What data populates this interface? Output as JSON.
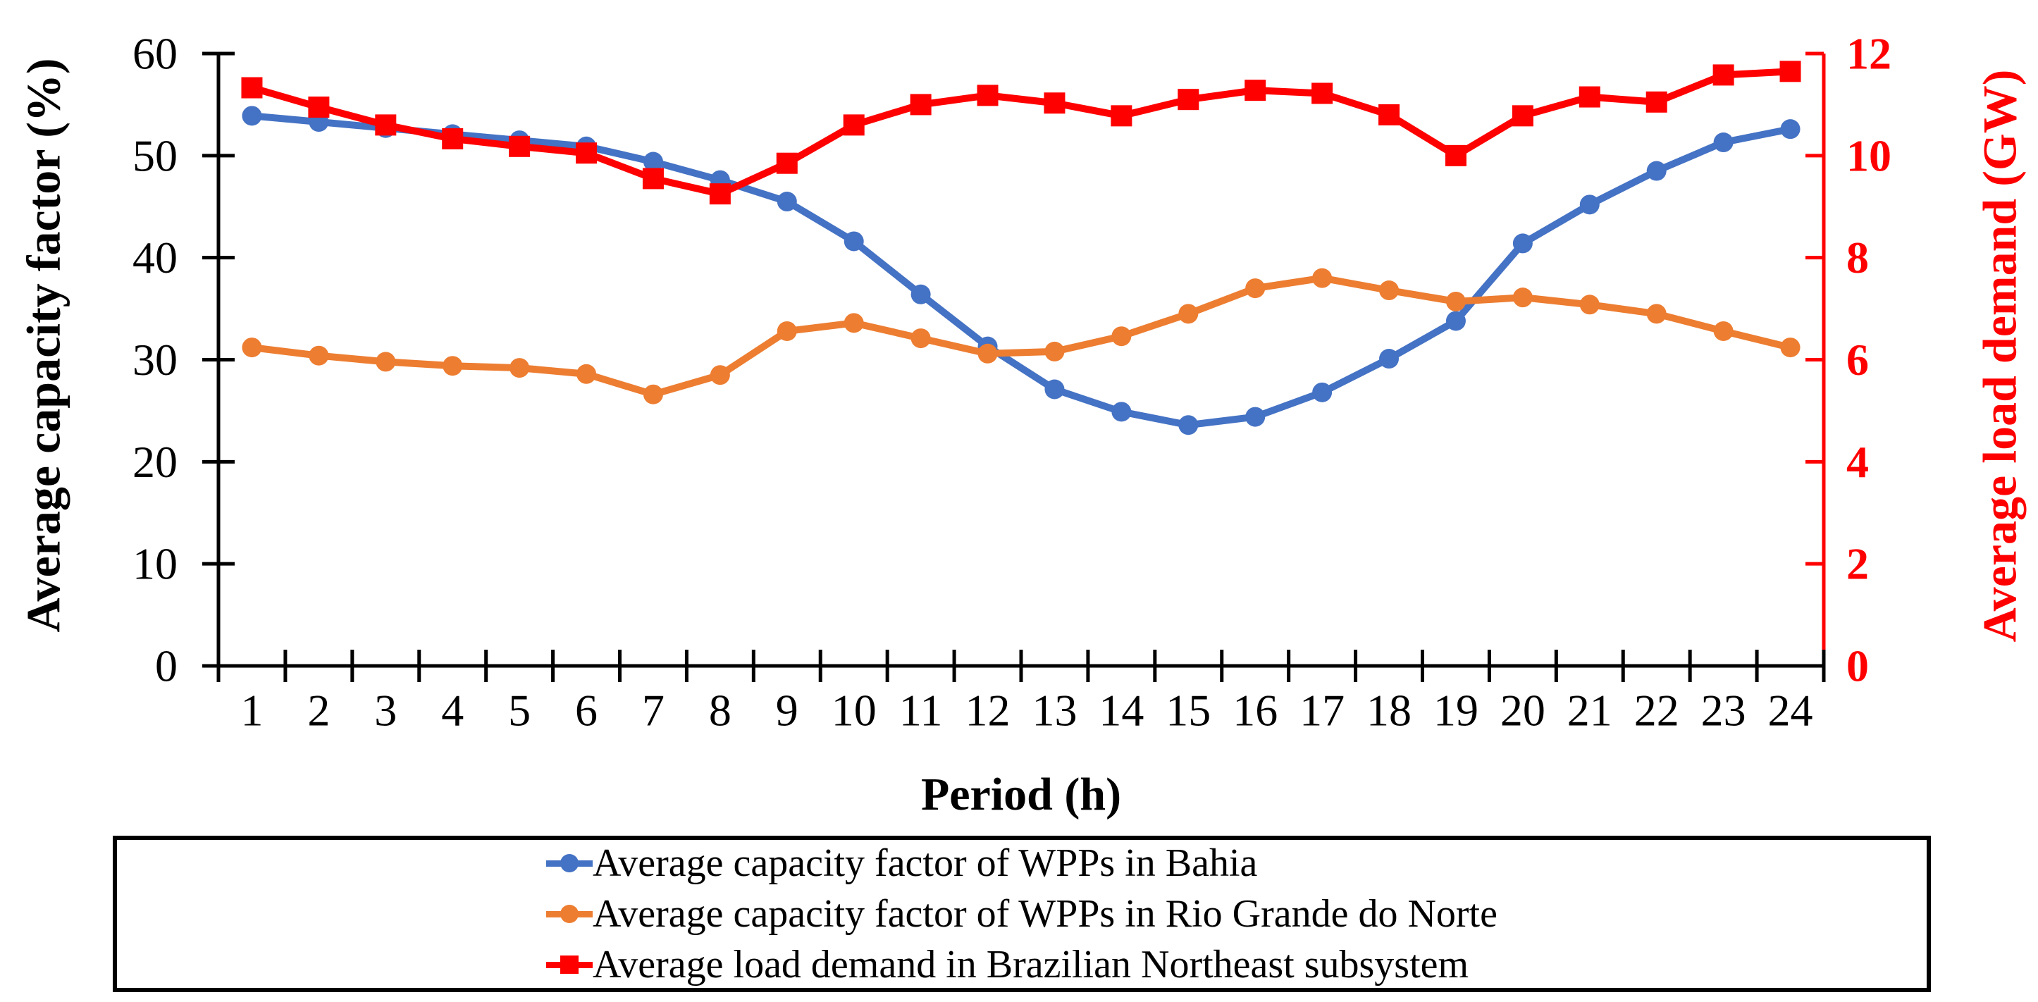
{
  "chart_data": {
    "type": "line",
    "x_label": "Period (h)",
    "x_categories": [
      1,
      2,
      3,
      4,
      5,
      6,
      7,
      8,
      9,
      10,
      11,
      12,
      13,
      14,
      15,
      16,
      17,
      18,
      19,
      20,
      21,
      22,
      23,
      24
    ],
    "y_left": {
      "label": "Average capacity factor (%)",
      "lim": [
        0,
        60
      ],
      "ticks": [
        0,
        10,
        20,
        30,
        40,
        50,
        60
      ],
      "color": "#000000"
    },
    "y_right": {
      "label": "Average load demand (GW)",
      "lim": [
        0,
        12
      ],
      "ticks": [
        0,
        2,
        4,
        6,
        8,
        10,
        12
      ],
      "color": "#FF0000"
    },
    "grid": false,
    "legend_position": "bottom-boxed",
    "series": [
      {
        "name": "Average capacity factor of WPPs in Bahia",
        "axis": "left",
        "color": "#4472C4",
        "marker": "circle",
        "values": [
          53.9,
          53.3,
          52.7,
          52.1,
          51.5,
          50.9,
          49.4,
          47.6,
          45.5,
          41.6,
          36.4,
          31.3,
          27.1,
          24.9,
          23.6,
          24.4,
          26.8,
          30.1,
          33.8,
          41.4,
          45.2,
          48.5,
          51.3,
          52.6
        ]
      },
      {
        "name": "Average capacity factor of WPPs in Rio Grande do Norte",
        "axis": "left",
        "color": "#ED7D31",
        "marker": "circle",
        "values": [
          31.2,
          30.4,
          29.8,
          29.4,
          29.2,
          28.6,
          26.6,
          28.5,
          32.8,
          33.6,
          32.1,
          30.6,
          30.8,
          32.3,
          34.5,
          37.0,
          38.0,
          36.8,
          35.7,
          36.1,
          35.4,
          34.5,
          32.8,
          31.2
        ]
      },
      {
        "name": "Average load demand in Brazilian Northeast subsystem",
        "axis": "right",
        "color": "#FF0000",
        "marker": "square",
        "values": [
          11.33,
          10.95,
          10.6,
          10.33,
          10.18,
          10.05,
          9.55,
          9.25,
          9.85,
          10.6,
          11.0,
          11.18,
          11.03,
          10.78,
          11.1,
          11.28,
          11.22,
          10.8,
          10.0,
          10.78,
          11.15,
          11.05,
          11.58,
          11.65
        ]
      }
    ],
    "legend": [
      {
        "label": "Average capacity factor of WPPs in Bahia",
        "color": "#4472C4",
        "marker": "circle"
      },
      {
        "label": "Average capacity factor of WPPs in Rio Grande do Norte",
        "color": "#ED7D31",
        "marker": "circle"
      },
      {
        "label": "Average load demand in Brazilian Northeast subsystem",
        "color": "#FF0000",
        "marker": "square"
      }
    ]
  }
}
